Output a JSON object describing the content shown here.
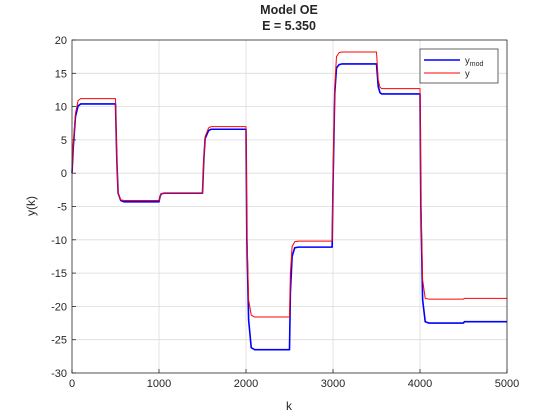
{
  "chart_data": {
    "type": "line",
    "title": "Model OE",
    "subtitle": "E = 5.350",
    "xlabel": "k",
    "ylabel": "y(k)",
    "xlim": [
      0,
      5000
    ],
    "ylim": [
      -30,
      20
    ],
    "xticks": [
      0,
      1000,
      2000,
      3000,
      4000,
      5000
    ],
    "yticks": [
      -30,
      -25,
      -20,
      -15,
      -10,
      -5,
      0,
      5,
      10,
      15,
      20
    ],
    "grid": true,
    "legend_placement": "top-right",
    "series": [
      {
        "name": "y_mod",
        "legend_base": "y",
        "legend_sub": "mod",
        "color": "#0000ff",
        "x": [
          0,
          15,
          40,
          70,
          100,
          500,
          515,
          530,
          560,
          600,
          1000,
          1010,
          1025,
          1060,
          1500,
          1515,
          1530,
          1570,
          1600,
          2000,
          2010,
          2030,
          2060,
          2100,
          2500,
          2510,
          2530,
          2560,
          2600,
          2990,
          3000,
          3020,
          3040,
          3070,
          3100,
          3500,
          3520,
          3540,
          3560,
          3600,
          4000,
          4010,
          4030,
          4060,
          4100,
          4500,
          4510,
          4530,
          5000
        ],
        "y": [
          0,
          4,
          8.5,
          10.1,
          10.4,
          10.4,
          2,
          -3,
          -4.1,
          -4.3,
          -4.3,
          -3.6,
          -3.1,
          -3.0,
          -3.0,
          2,
          5.2,
          6.4,
          6.6,
          6.6,
          -10,
          -22,
          -26.2,
          -26.5,
          -26.5,
          -18,
          -12.5,
          -11.2,
          -11.1,
          -11.1,
          -2,
          12,
          15.8,
          16.3,
          16.4,
          16.4,
          13,
          12.1,
          11.9,
          11.9,
          11.9,
          -5,
          -19,
          -22.3,
          -22.5,
          -22.5,
          -22.3,
          -22.3,
          -22.3
        ]
      },
      {
        "name": "y",
        "legend_base": "y",
        "legend_sub": "",
        "color": "#ff0000",
        "x": [
          0,
          15,
          40,
          70,
          100,
          500,
          515,
          530,
          560,
          600,
          1000,
          1010,
          1025,
          1060,
          1500,
          1515,
          1530,
          1570,
          1600,
          2000,
          2010,
          2030,
          2060,
          2100,
          2500,
          2510,
          2530,
          2560,
          2600,
          2990,
          3000,
          3020,
          3040,
          3070,
          3100,
          3500,
          3520,
          3540,
          3560,
          3600,
          4000,
          4010,
          4030,
          4060,
          4100,
          4500,
          4510,
          4530,
          5000
        ],
        "y": [
          0,
          4.5,
          9,
          10.9,
          11.2,
          11.2,
          2.2,
          -3,
          -4.0,
          -4.1,
          -4.1,
          -3.5,
          -3.1,
          -3.0,
          -3.0,
          2.2,
          5.5,
          6.8,
          7.0,
          7.0,
          -9,
          -19,
          -21.3,
          -21.6,
          -21.6,
          -15,
          -11,
          -10.3,
          -10.2,
          -10.2,
          -1,
          13,
          17.5,
          18.1,
          18.2,
          18.2,
          14,
          12.9,
          12.7,
          12.7,
          12.7,
          -4,
          -16,
          -18.8,
          -18.9,
          -18.9,
          -18.8,
          -18.8,
          -18.8
        ]
      }
    ]
  }
}
